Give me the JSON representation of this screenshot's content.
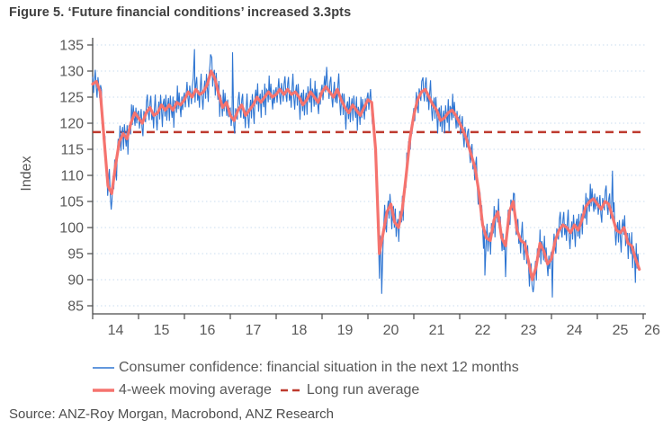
{
  "figure": {
    "title": "Figure 5. ‘Future financial conditions’ increased 3.3pts",
    "ylabel": "Index",
    "source": "Source: ANZ-Roy Morgan, Macrobond, ANZ Research"
  },
  "legend": {
    "series1": "Consumer confidence: financial situation in the next 12 months",
    "series2": "4-week moving average",
    "series3": "Long run average"
  },
  "chart_data": {
    "type": "line",
    "title": "Figure 5. ‘Future financial conditions’ increased 3.3pts",
    "xlabel": "",
    "ylabel": "Index",
    "ylim": [
      85,
      135
    ],
    "ytick_step": 5,
    "xlim": [
      2014,
      2026
    ],
    "xticks": [
      14,
      15,
      16,
      17,
      18,
      19,
      20,
      21,
      22,
      23,
      24,
      25,
      26
    ],
    "grid": "horizontal-dotted",
    "legend_position": "bottom",
    "grid_color": "#C9DDEF",
    "axis_color": "#4A4A4A",
    "text_color": "#595959",
    "long_run_average": 118.3,
    "series": [
      {
        "name": "Consumer confidence: financial situation in the next 12 months",
        "color": "#2E75D2",
        "frequency": "weekly",
        "derive": "moving_average_plus_deviation",
        "x_start": 2014.0,
        "step_years": 0.0192308,
        "deviations": [
          1.4,
          -1.8,
          0.6,
          2.4,
          -1.0,
          -2.8,
          1.6,
          0.3,
          -1.5,
          2.0,
          3.2,
          -0.5,
          -2.2,
          1.1,
          2.6,
          -1.7,
          0.5,
          -2.6,
          1.3,
          3.8,
          -0.9,
          -3.3,
          0.2,
          1.7,
          -2.1,
          2.3,
          -0.7,
          -4.0,
          0.9,
          1.9,
          -1.3,
          2.8,
          -2.4,
          0.4,
          1.5,
          -3.0,
          2.1,
          -0.2,
          -1.7,
          2.6,
          -3.7,
          1.1,
          0.6,
          -1.9,
          3.3,
          -1.1,
          2.2,
          -0.4,
          -2.4,
          1.3,
          -1.5,
          0.7
        ],
        "extremes": [
          [
            2014.42,
            105.0
          ],
          [
            2016.22,
            134.2
          ],
          [
            2016.57,
            133.2
          ],
          [
            2017.05,
            133.6
          ],
          [
            2019.1,
            130.8
          ],
          [
            2020.25,
            90.2
          ],
          [
            2020.3,
            87.3
          ],
          [
            2021.2,
            128.8
          ],
          [
            2022.55,
            90.8
          ],
          [
            2023.0,
            90.5
          ],
          [
            2023.6,
            87.6
          ],
          [
            2024.02,
            86.6
          ],
          [
            2025.33,
            110.9
          ],
          [
            2025.83,
            89.4
          ],
          [
            2025.9,
            92.7
          ]
        ]
      },
      {
        "name": "4-week moving average",
        "color": "#F5736E",
        "frequency": "monthly",
        "x_start": 2014.0,
        "x_step": 0.0833333,
        "values": [
          127.5,
          128,
          126,
          117,
          108,
          106.5,
          112,
          116.5,
          118,
          117,
          120,
          122,
          121,
          120,
          122,
          123,
          121.5,
          122,
          123.5,
          122.5,
          123.5,
          122.5,
          124,
          123.5,
          124.5,
          126,
          125,
          126.5,
          125.5,
          126,
          127.5,
          130,
          128.5,
          125.5,
          123,
          124,
          121.5,
          120.5,
          122.5,
          123.5,
          121.5,
          122.5,
          123.5,
          125,
          124,
          125,
          126,
          125,
          125.5,
          126.5,
          125.5,
          126.5,
          125.5,
          126,
          125,
          123.5,
          124.5,
          126,
          125,
          124,
          126,
          127,
          126,
          125,
          126.5,
          124.5,
          123,
          122,
          123.5,
          122.5,
          121.5,
          123,
          124.5,
          124,
          115,
          95,
          99,
          103,
          104.5,
          101,
          100,
          103.5,
          110,
          117,
          121.5,
          124.5,
          126,
          126.5,
          125,
          123.5,
          122.5,
          120.5,
          121,
          122,
          122.5,
          121.5,
          120,
          118.5,
          116.5,
          114,
          111.5,
          107,
          100.5,
          98,
          97.5,
          101.5,
          103,
          98,
          96.5,
          103,
          105,
          99.5,
          97.5,
          97,
          93.5,
          90,
          92.5,
          97,
          95.5,
          93,
          94,
          97.5,
          99.5,
          100.5,
          100,
          99,
          100.5,
          99.5,
          101.5,
          104,
          105,
          105.5,
          104.5,
          103.5,
          105,
          104.5,
          102,
          99.5,
          99,
          100,
          97,
          96.5,
          94,
          92
        ]
      },
      {
        "name": "Long run average",
        "color": "#BE3A2E",
        "style": "dashed",
        "value": 118.3
      }
    ]
  }
}
